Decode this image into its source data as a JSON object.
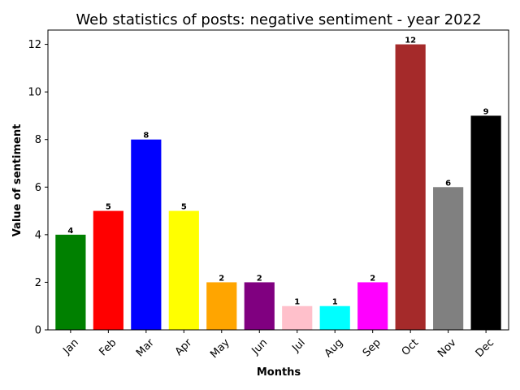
{
  "chart_data": {
    "type": "bar",
    "title": "Web statistics of posts: negative sentiment - year 2022",
    "xlabel": "Months",
    "ylabel": "Value of sentiment",
    "categories": [
      "Jan",
      "Feb",
      "Mar",
      "Apr",
      "May",
      "Jun",
      "Jul",
      "Aug",
      "Sep",
      "Oct",
      "Nov",
      "Dec"
    ],
    "values": [
      4,
      5,
      8,
      5,
      2,
      2,
      1,
      1,
      2,
      12,
      6,
      9
    ],
    "colors": [
      "#008000",
      "#ff0000",
      "#0000ff",
      "#ffff00",
      "#ffa500",
      "#800080",
      "#ffc0cb",
      "#00ffff",
      "#ff00ff",
      "#a52a2a",
      "#808080",
      "#000000"
    ],
    "ylim": [
      0,
      12.6
    ],
    "yticks": [
      0,
      2,
      4,
      6,
      8,
      10,
      12
    ],
    "grid": false,
    "x_tick_rotation_deg": 45
  }
}
